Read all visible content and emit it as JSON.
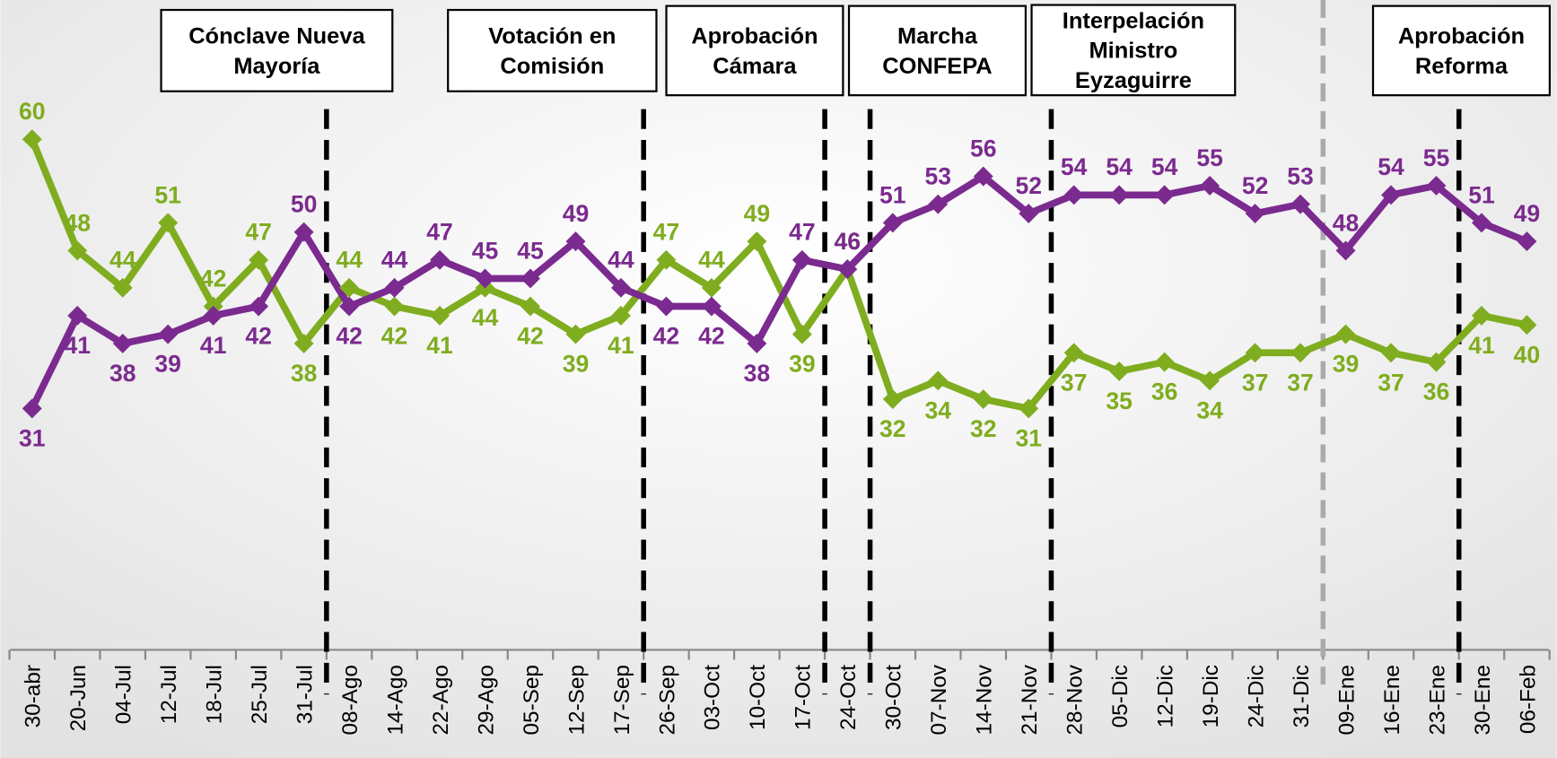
{
  "chart_data": {
    "type": "line",
    "categories": [
      "30-abr",
      "20-Jun",
      "04-Jul",
      "12-Jul",
      "18-Jul",
      "25-Jul",
      "31-Jul",
      "08-Ago",
      "14-Ago",
      "22-Ago",
      "29-Ago",
      "05-Sep",
      "12-Sep",
      "17-Sep",
      "26-Sep",
      "03-Oct",
      "10-Oct",
      "17-Oct",
      "24-Oct",
      "30-Oct",
      "07-Nov",
      "14-Nov",
      "21-Nov",
      "28-Nov",
      "05-Dic",
      "12-Dic",
      "19-Dic",
      "24-Dic",
      "31-Dic",
      "09-Ene",
      "16-Ene",
      "23-Ene",
      "30-Ene",
      "06-Feb"
    ],
    "series": [
      {
        "color": "#7fad1f",
        "values": [
          60,
          48,
          44,
          51,
          42,
          47,
          38,
          44,
          42,
          41,
          44,
          42,
          39,
          41,
          47,
          44,
          49,
          39,
          46,
          32,
          34,
          32,
          31,
          37,
          35,
          36,
          34,
          37,
          37,
          39,
          37,
          36,
          41,
          40
        ]
      },
      {
        "color": "#7b2a8f",
        "values": [
          31,
          41,
          38,
          39,
          41,
          42,
          50,
          42,
          44,
          47,
          45,
          45,
          49,
          44,
          42,
          42,
          38,
          47,
          46,
          51,
          53,
          56,
          52,
          54,
          54,
          54,
          55,
          52,
          53,
          48,
          54,
          55,
          51,
          49
        ]
      }
    ],
    "annotations": [
      [
        "Cónclave Nueva",
        "Mayoría"
      ],
      [
        "Votación en",
        "Comisión"
      ],
      [
        "Aprobación",
        "Cámara"
      ],
      [
        "Marcha",
        "CONFEPA"
      ],
      [
        "Interpelación",
        "Ministro",
        "Eyzaguirre"
      ],
      [
        "Aprobación",
        "Reforma"
      ]
    ],
    "ylim": [
      5,
      75
    ]
  }
}
